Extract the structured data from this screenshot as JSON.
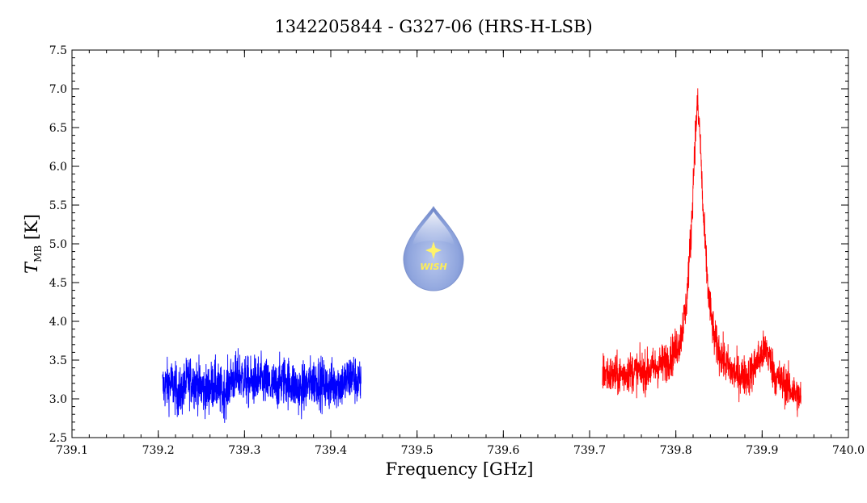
{
  "chart_data": {
    "type": "line",
    "title": "1342205844 - G327-06 (HRS-H-LSB)",
    "xlabel": "Frequency [GHz]",
    "ylabel_main": "T",
    "ylabel_sub": "MB",
    "ylabel_unit": "[K]",
    "xlim": [
      739.1,
      740.0
    ],
    "ylim": [
      2.5,
      7.5
    ],
    "xticks": [
      739.1,
      739.2,
      739.3,
      739.4,
      739.5,
      739.6,
      739.7,
      739.8,
      739.9,
      740.0
    ],
    "xtick_labels": [
      "739.1",
      "739.2",
      "739.3",
      "739.4",
      "739.5",
      "739.6",
      "739.7",
      "739.8",
      "739.9",
      "740.0"
    ],
    "yticks": [
      2.5,
      3.0,
      3.5,
      4.0,
      4.5,
      5.0,
      5.5,
      6.0,
      6.5,
      7.0,
      7.5
    ],
    "ytick_labels": [
      "2.5",
      "3.0",
      "3.5",
      "4.0",
      "4.5",
      "5.0",
      "5.5",
      "6.0",
      "6.5",
      "7.0",
      "7.5"
    ],
    "grid": false,
    "series": [
      {
        "color": "#0000ff",
        "x": [
          739.205,
          739.215,
          739.225,
          739.235,
          739.245,
          739.255,
          739.265,
          739.275,
          739.285,
          739.295,
          739.305,
          739.315,
          739.325,
          739.335,
          739.345,
          739.355,
          739.365,
          739.375,
          739.385,
          739.395,
          739.405,
          739.415,
          739.425,
          739.435
        ],
        "y": [
          3.15,
          3.2,
          3.05,
          3.25,
          3.2,
          3.1,
          3.2,
          3.05,
          3.25,
          3.3,
          3.2,
          3.25,
          3.2,
          3.15,
          3.25,
          3.2,
          3.1,
          3.2,
          3.25,
          3.15,
          3.2,
          3.2,
          3.3,
          3.15
        ],
        "noise": 0.16
      },
      {
        "color": "#ff0000",
        "x": [
          739.715,
          739.725,
          739.735,
          739.745,
          739.755,
          739.765,
          739.775,
          739.785,
          739.795,
          739.805,
          739.812,
          739.818,
          739.822,
          739.825,
          739.828,
          739.832,
          739.838,
          739.845,
          739.855,
          739.865,
          739.875,
          739.885,
          739.895,
          739.905,
          739.915,
          739.925,
          739.935,
          739.945
        ],
        "y": [
          3.35,
          3.3,
          3.3,
          3.35,
          3.35,
          3.35,
          3.4,
          3.45,
          3.55,
          3.75,
          4.2,
          5.2,
          6.3,
          6.8,
          6.4,
          5.3,
          4.3,
          3.75,
          3.5,
          3.35,
          3.3,
          3.3,
          3.5,
          3.65,
          3.3,
          3.2,
          3.1,
          3.0
        ],
        "noise": 0.13
      }
    ]
  },
  "logo": {
    "text": "WISH"
  }
}
